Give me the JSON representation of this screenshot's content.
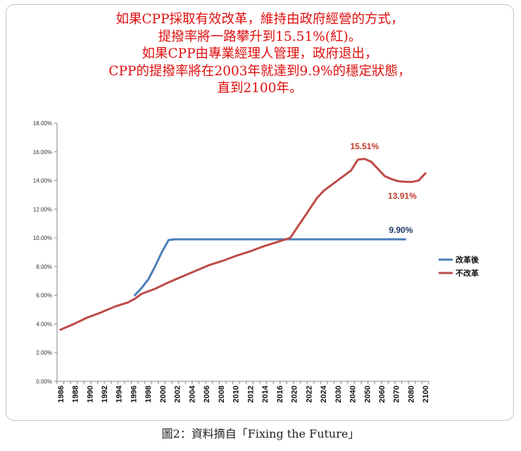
{
  "header": {
    "lines": [
      "如果CPP採取有效改革，維持由政府經營的方式，",
      "提撥率將一路攀升到15.51%(紅)。",
      "如果CPP由專業經理人管理，政府退出，",
      "CPP的提撥率將在2003年就達到9.9%的穩定狀態，",
      "直到2100年。"
    ]
  },
  "caption": "圖2：資料摘自「Fixing the Future」",
  "colors": {
    "blue": "#4a7ebb",
    "red": "#be4b48",
    "title": "#e01010",
    "axis": "#868686",
    "anno_blue": "#1f3864",
    "anno_red": "#c0392b"
  },
  "chart_data": {
    "type": "line",
    "title": "",
    "xlabel": "",
    "ylabel": "",
    "ylim": [
      0,
      18
    ],
    "y_ticks": [
      "0.00%",
      "2.00%",
      "4.00%",
      "6.00%",
      "8.00%",
      "10.00%",
      "12.00%",
      "14.00%",
      "16.00%",
      "18.00%"
    ],
    "y_tick_values": [
      0,
      2,
      4,
      6,
      8,
      10,
      12,
      14,
      16,
      18
    ],
    "x_ticks": [
      "1986",
      "1988",
      "1990",
      "1992",
      "1994",
      "1996",
      "1998",
      "2000",
      "2002",
      "2004",
      "2006",
      "2008",
      "2010",
      "2012",
      "2014",
      "2016",
      "2020",
      "2022",
      "2024",
      "2030",
      "2040",
      "2050",
      "2060",
      "2070",
      "2080",
      "2100"
    ],
    "legend": {
      "position": "right",
      "entries": [
        "改革後",
        "不改革"
      ]
    },
    "series": [
      {
        "name": "改革後",
        "color": "#4a7ebb",
        "points": [
          [
            11,
            6.0
          ],
          [
            12,
            6.5
          ],
          [
            13,
            7.1
          ],
          [
            14,
            8.0
          ],
          [
            15,
            9.0
          ],
          [
            16,
            9.85
          ],
          [
            17,
            9.9
          ],
          [
            18,
            9.9
          ],
          [
            19,
            9.9
          ],
          [
            20,
            9.9
          ],
          [
            21,
            9.9
          ],
          [
            22,
            9.9
          ],
          [
            23,
            9.9
          ],
          [
            24,
            9.9
          ],
          [
            25,
            9.9
          ],
          [
            26,
            9.9
          ],
          [
            27,
            9.9
          ],
          [
            28,
            9.9
          ],
          [
            29,
            9.9
          ],
          [
            30,
            9.9
          ],
          [
            31,
            9.9
          ],
          [
            32,
            9.9
          ],
          [
            33,
            9.9
          ],
          [
            34,
            9.9
          ],
          [
            35,
            9.9
          ],
          [
            36,
            9.9
          ],
          [
            37,
            9.9
          ],
          [
            38,
            9.9
          ],
          [
            39,
            9.9
          ],
          [
            40,
            9.9
          ],
          [
            41,
            9.9
          ],
          [
            42,
            9.9
          ],
          [
            43,
            9.9
          ],
          [
            44,
            9.9
          ],
          [
            45,
            9.9
          ],
          [
            46,
            9.9
          ],
          [
            47,
            9.9
          ],
          [
            48,
            9.9
          ],
          [
            49,
            9.9
          ],
          [
            50,
            9.9
          ],
          [
            51,
            9.9
          ]
        ]
      },
      {
        "name": "不改革",
        "color": "#be4b48",
        "points": [
          [
            0,
            3.6
          ],
          [
            2,
            4.0
          ],
          [
            4,
            4.45
          ],
          [
            6,
            4.8
          ],
          [
            8,
            5.2
          ],
          [
            10,
            5.5
          ],
          [
            11,
            5.75
          ],
          [
            12,
            6.1
          ],
          [
            14,
            6.45
          ],
          [
            16,
            6.9
          ],
          [
            18,
            7.3
          ],
          [
            20,
            7.7
          ],
          [
            22,
            8.1
          ],
          [
            24,
            8.4
          ],
          [
            26,
            8.75
          ],
          [
            28,
            9.05
          ],
          [
            30,
            9.4
          ],
          [
            32,
            9.7
          ],
          [
            34,
            10.0
          ],
          [
            36,
            11.4
          ],
          [
            38,
            12.8
          ],
          [
            39,
            13.3
          ],
          [
            41,
            14.0
          ],
          [
            43,
            14.7
          ],
          [
            44,
            15.45
          ],
          [
            45,
            15.51
          ],
          [
            46,
            15.3
          ],
          [
            47,
            14.8
          ],
          [
            48,
            14.3
          ],
          [
            49,
            14.1
          ],
          [
            50,
            13.95
          ],
          [
            51,
            13.91
          ],
          [
            52,
            13.9
          ],
          [
            53,
            14.0
          ],
          [
            54,
            14.5
          ]
        ]
      }
    ],
    "annotations": [
      {
        "text": "15.51%",
        "color": "#c0392b",
        "series": "不改革",
        "at": 45
      },
      {
        "text": "13.91%",
        "color": "#c0392b",
        "series": "不改革",
        "at": 51
      },
      {
        "text": "9.90%",
        "color": "#1f3864",
        "series": "改革後",
        "at": 51
      }
    ]
  }
}
